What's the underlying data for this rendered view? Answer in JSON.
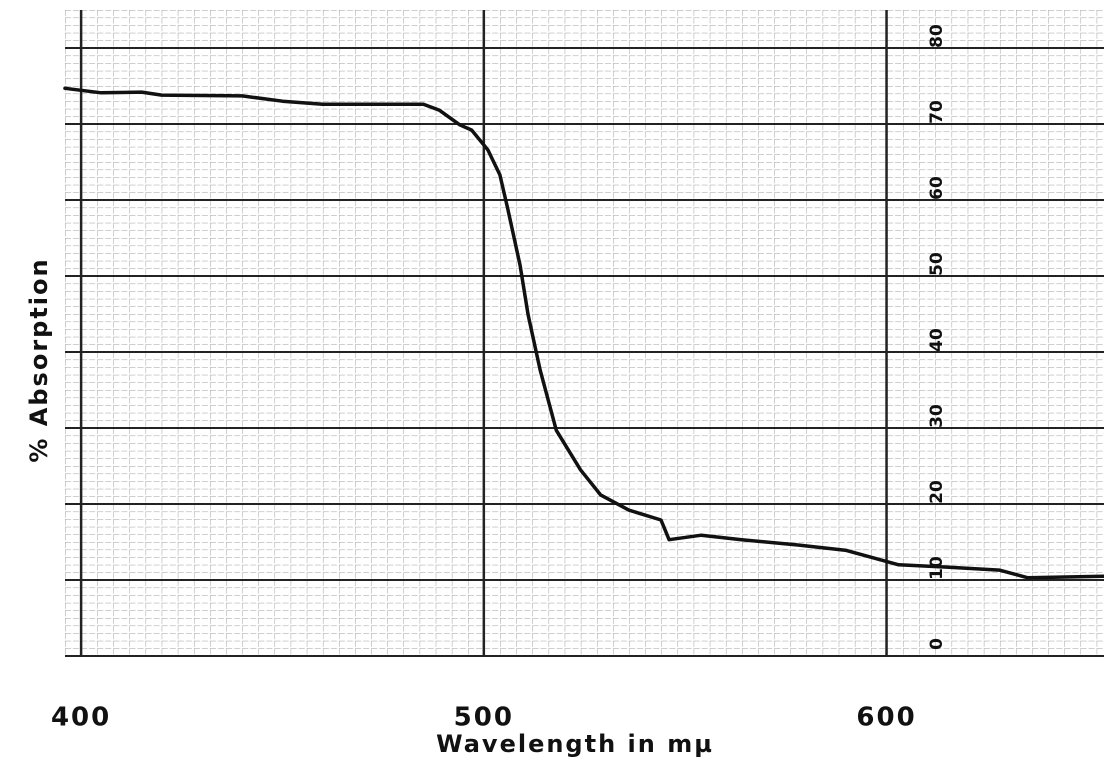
{
  "chart_data": {
    "type": "line",
    "x_label": "Wavelength in mµ",
    "y_label": "% Absorption",
    "xlim": [
      396,
      654
    ],
    "ylim": [
      0,
      85
    ],
    "xticks": [
      400,
      500,
      600
    ],
    "yticks": [
      0,
      10,
      20,
      30,
      40,
      50,
      60,
      70,
      80
    ],
    "grid": true,
    "series": [
      {
        "color": "#111111",
        "x": [
          396,
          405,
          415,
          420,
          440,
          450,
          460,
          480,
          485,
          489,
          494,
          497,
          501,
          504,
          506,
          509,
          511,
          514,
          518,
          524,
          529,
          536,
          544,
          546,
          554,
          564,
          578,
          590,
          603,
          615,
          628,
          635,
          654
        ],
        "values": [
          74.7,
          74.1,
          74.2,
          73.8,
          73.7,
          73.0,
          72.6,
          72.6,
          72.6,
          71.8,
          69.9,
          69.2,
          66.6,
          63.3,
          58.7,
          51.4,
          44.9,
          37.6,
          29.7,
          24.5,
          21.2,
          19.2,
          17.9,
          15.3,
          15.9,
          15.3,
          14.6,
          13.9,
          12.0,
          11.7,
          11.3,
          10.3,
          10.5
        ]
      }
    ]
  }
}
